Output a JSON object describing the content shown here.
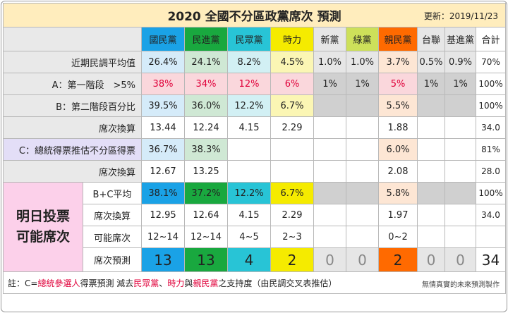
{
  "title": "2020 全國不分區政黨席次 預測",
  "updated": "更新：2019/11/23",
  "parties": [
    {
      "name": "國民黨",
      "head_bg": "#1aa2e6",
      "light": "#d5ebf9",
      "pred_bg": "#1aa2e6"
    },
    {
      "name": "民進黨",
      "head_bg": "#19a83f",
      "light": "#cfe8d4",
      "pred_bg": "#19a83f"
    },
    {
      "name": "民眾黨",
      "head_bg": "#28c4d6",
      "light": "#d2f0f4",
      "pred_bg": "#28c4d6"
    },
    {
      "name": "時力",
      "head_bg": "#f5eb00",
      "light": "#fbf6b4",
      "pred_bg": "#f5eb00"
    },
    {
      "name": "新黨",
      "head_bg": "#e6e6e6",
      "light": "#e6e6e6",
      "pred_bg": "#e6e6e6"
    },
    {
      "name": "綠黨",
      "head_bg": "#cde05a",
      "light": "#e6e6e6",
      "pred_bg": "#e6e6e6"
    },
    {
      "name": "親民黨",
      "head_bg": "#ff6a00",
      "light": "#fde6d4",
      "pred_bg": "#ff6a00"
    },
    {
      "name": "台聯",
      "head_bg": "#e6e6e6",
      "light": "#e6e6e6",
      "pred_bg": "#e6e6e6"
    },
    {
      "name": "基進黨",
      "head_bg": "#e6e6e6",
      "light": "#e6e6e6",
      "pred_bg": "#e6e6e6"
    }
  ],
  "total_header": "合計",
  "big_label": "明日投票\n可能席次",
  "rows": [
    {
      "key": "avg",
      "label": "近期民調平均值",
      "values": [
        "26.4%",
        "24.1%",
        "8.2%",
        "4.5%",
        "1.0%",
        "1.0%",
        "3.7%",
        "0.5%",
        "0.9%"
      ],
      "total": "70%",
      "fill": "light"
    },
    {
      "key": "t1",
      "label": "A：第一階段　>5%",
      "values": [
        "38%",
        "34%",
        "12%",
        "6%",
        "1%",
        "1%",
        "5%",
        "1%",
        "1%"
      ],
      "total": "100%",
      "fill": "t1"
    },
    {
      "key": "t2",
      "label": "B：第二階段百分比",
      "values": [
        "39.5%",
        "36.0%",
        "12.2%",
        "6.7%",
        "",
        "",
        "5.5%",
        "",
        ""
      ],
      "total": "100%",
      "fill": "t2"
    },
    {
      "key": "s1",
      "label": "席次換算",
      "values": [
        "13.44",
        "12.24",
        "4.15",
        "2.29",
        "",
        "",
        "1.88",
        "",
        ""
      ],
      "total": "34.0",
      "fill": "white"
    },
    {
      "key": "c",
      "label": "C：總統得票推估不分區得票",
      "values": [
        "36.7%",
        "38.3%",
        "",
        "",
        "",
        "",
        "6.0%",
        "",
        ""
      ],
      "total": "81%",
      "fill": "c"
    },
    {
      "key": "s2",
      "label": "席次換算",
      "values": [
        "12.67",
        "13.25",
        "",
        "",
        "",
        "",
        "2.08",
        "",
        ""
      ],
      "total": "28.0",
      "fill": "white"
    },
    {
      "key": "bc",
      "label": "B+C平均",
      "values": [
        "38.1%",
        "37.2%",
        "12.2%",
        "6.7%",
        "",
        "",
        "5.8%",
        "",
        ""
      ],
      "total": "100%",
      "fill": "bc"
    },
    {
      "key": "s3",
      "label": "席次換算",
      "values": [
        "12.95",
        "12.64",
        "4.15",
        "2.29",
        "",
        "",
        "1.97",
        "",
        ""
      ],
      "total": "34.0",
      "fill": "white"
    },
    {
      "key": "range",
      "label": "可能席次",
      "values": [
        "12~14",
        "12~14",
        "4~5",
        "2~3",
        "",
        "",
        "0~2",
        "",
        ""
      ],
      "total": "",
      "fill": "white"
    },
    {
      "key": "pred",
      "label": "席次預測",
      "values": [
        "13",
        "13",
        "4",
        "2",
        "0",
        "0",
        "2",
        "0",
        "0"
      ],
      "total": "34",
      "fill": "pred"
    }
  ],
  "note_prefix": "註：C=",
  "note_hl1": "總統參選人",
  "note_mid1": "得票預測 減去",
  "note_hl2": "民眾黨",
  "note_sep1": "、",
  "note_hl3": "時力",
  "note_mid2": "與",
  "note_hl4": "親民黨",
  "note_suffix": "之支持度（由民調交叉表推估）",
  "signature": "無情真實的未來預測製作",
  "chart_data": {
    "type": "table",
    "title": "2020 全國不分區政黨席次 預測",
    "columns": [
      "國民黨",
      "民進黨",
      "民眾黨",
      "時力",
      "新黨",
      "綠黨",
      "親民黨",
      "台聯",
      "基進黨",
      "合計"
    ],
    "rows": {
      "近期民調平均值": [
        "26.4%",
        "24.1%",
        "8.2%",
        "4.5%",
        "1.0%",
        "1.0%",
        "3.7%",
        "0.5%",
        "0.9%",
        "70%"
      ],
      "A：第一階段 >5%": [
        "38%",
        "34%",
        "12%",
        "6%",
        "1%",
        "1%",
        "5%",
        "1%",
        "1%",
        "100%"
      ],
      "B：第二階段百分比": [
        "39.5%",
        "36.0%",
        "12.2%",
        "6.7%",
        "",
        "",
        "5.5%",
        "",
        "",
        "100%"
      ],
      "B 席次換算": [
        "13.44",
        "12.24",
        "4.15",
        "2.29",
        "",
        "",
        "1.88",
        "",
        "",
        "34.0"
      ],
      "C：總統得票推估不分區得票": [
        "36.7%",
        "38.3%",
        "",
        "",
        "",
        "",
        "6.0%",
        "",
        "",
        "81%"
      ],
      "C 席次換算": [
        "12.67",
        "13.25",
        "",
        "",
        "",
        "",
        "2.08",
        "",
        "",
        "28.0"
      ],
      "B+C平均": [
        "38.1%",
        "37.2%",
        "12.2%",
        "6.7%",
        "",
        "",
        "5.8%",
        "",
        "",
        "100%"
      ],
      "B+C 席次換算": [
        "12.95",
        "12.64",
        "4.15",
        "2.29",
        "",
        "",
        "1.97",
        "",
        "",
        "34.0"
      ],
      "可能席次": [
        "12~14",
        "12~14",
        "4~5",
        "2~3",
        "",
        "",
        "0~2",
        "",
        "",
        ""
      ],
      "席次預測": [
        "13",
        "13",
        "4",
        "2",
        "0",
        "0",
        "2",
        "0",
        "0",
        "34"
      ]
    }
  }
}
